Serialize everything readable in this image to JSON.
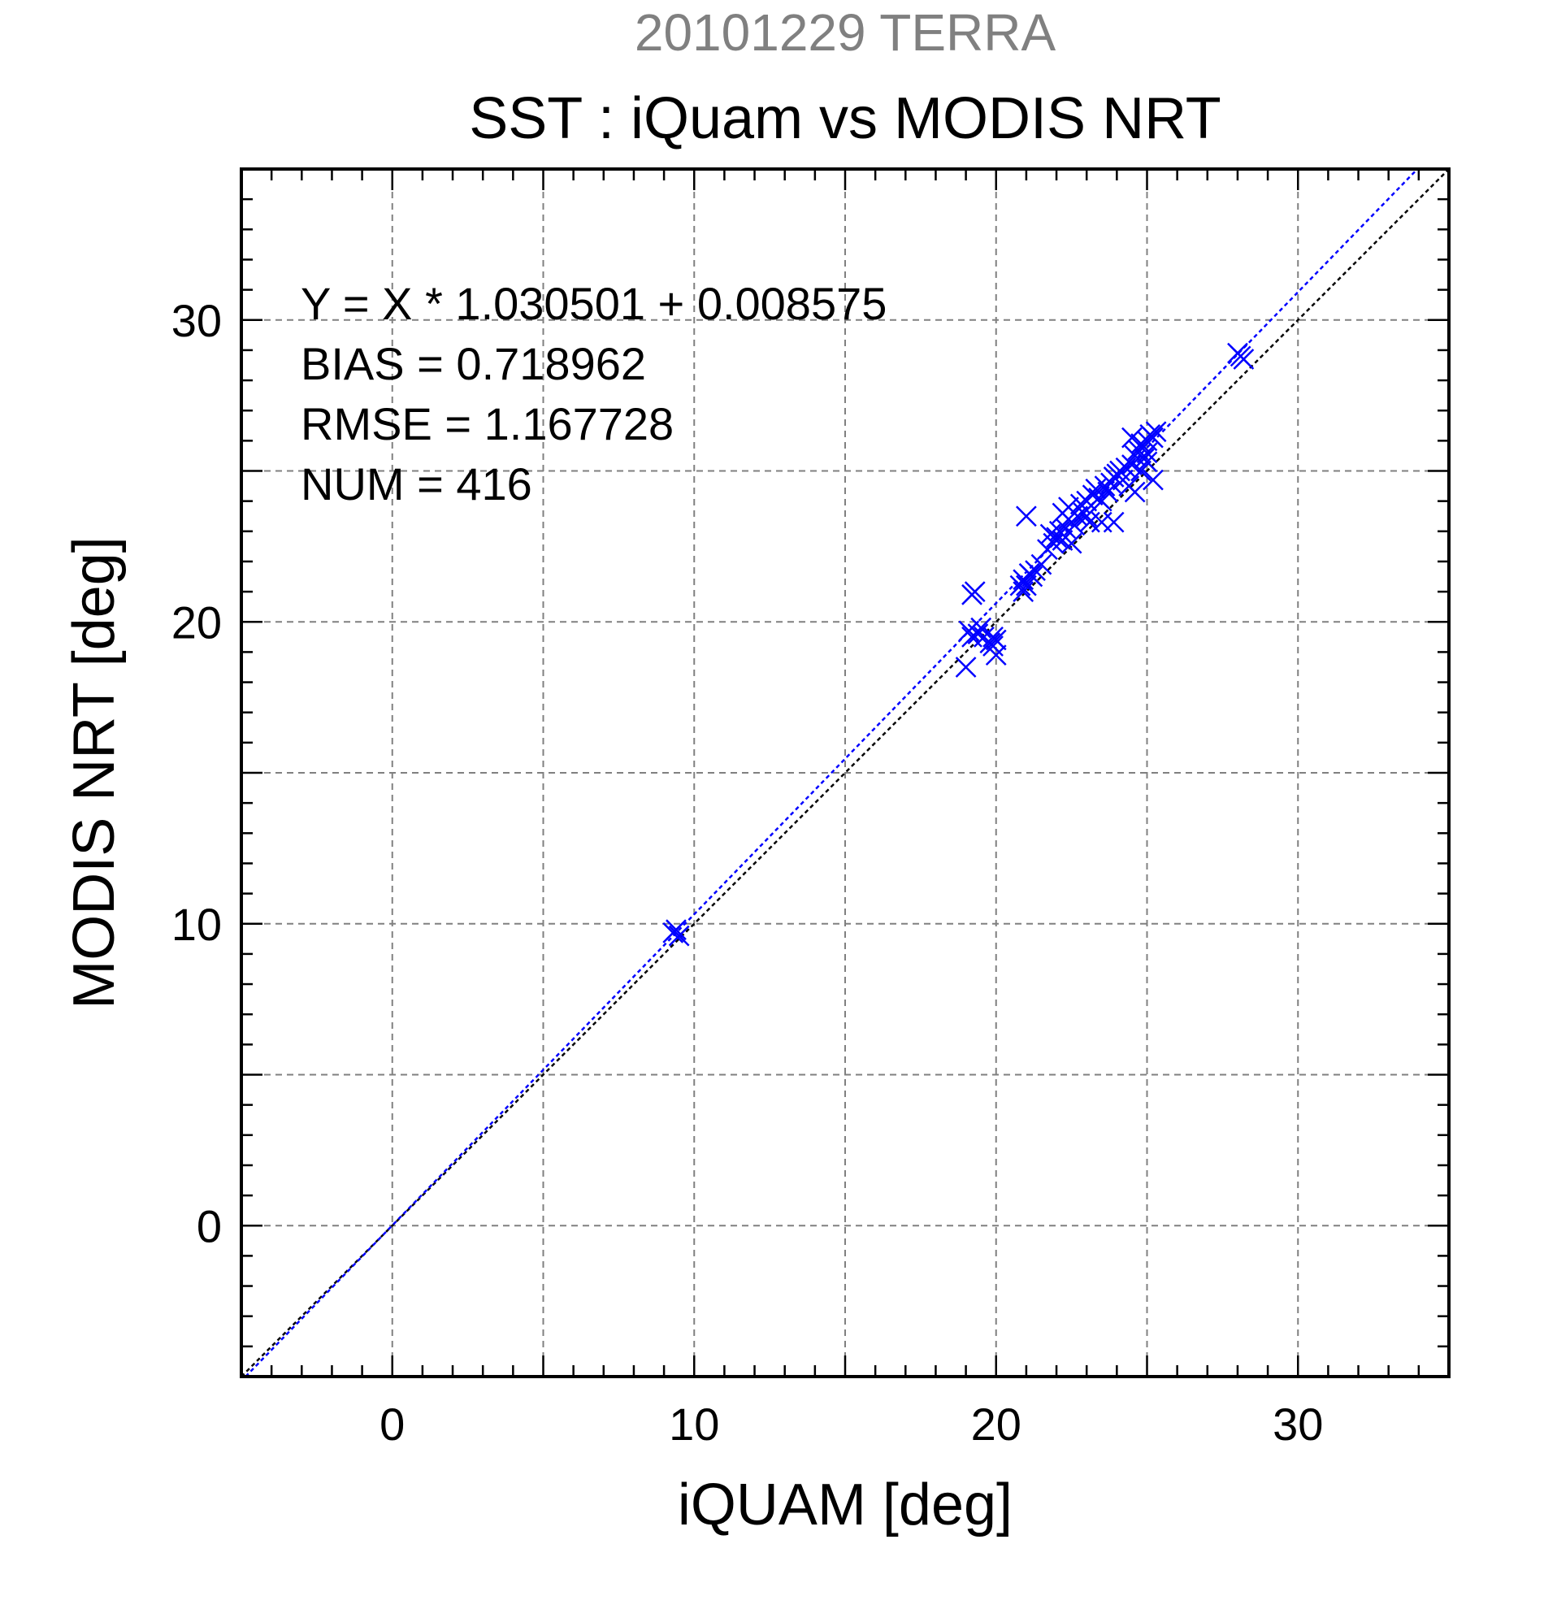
{
  "chart_data": {
    "type": "scatter",
    "title": "20101229 TERRA",
    "subtitle": "SST : iQuam vs MODIS NRT",
    "xlabel": "iQUAM [deg]",
    "ylabel": "MODIS NRT [deg]",
    "xlim": [
      -5,
      35
    ],
    "ylim": [
      -5,
      35
    ],
    "x_ticks": [
      0,
      10,
      20,
      30
    ],
    "y_ticks": [
      0,
      10,
      20,
      30
    ],
    "grid": true,
    "colors": {
      "title": "#808080",
      "text": "#000000",
      "points": "#0000ff",
      "fit_line": "#0000ff",
      "one_to_one_line": "#000000",
      "grid": "#808080"
    },
    "annotations": [
      "Y = X * 1.030501 + 0.008575",
      "BIAS = 0.718962",
      "RMSE = 1.167728",
      "NUM = 416"
    ],
    "fit": {
      "slope": 1.030501,
      "intercept": 0.008575
    },
    "series": [
      {
        "marker": "x",
        "x": [
          9.3,
          9.4,
          9.5,
          19.0,
          19.1,
          19.2,
          19.3,
          19.4,
          19.2,
          19.5,
          19.6,
          19.8,
          19.9,
          20.0,
          19.9,
          20.0,
          20.8,
          20.9,
          21.0,
          21.1,
          21.2,
          21.3,
          21.0,
          21.5,
          21.7,
          21.8,
          21.9,
          22.0,
          22.1,
          22.2,
          22.3,
          22.4,
          22.5,
          22.6,
          22.2,
          22.4,
          22.7,
          22.8,
          22.9,
          23.0,
          23.1,
          23.2,
          23.0,
          23.3,
          23.4,
          23.5,
          23.6,
          23.7,
          23.8,
          23.9,
          24.0,
          23.5,
          23.9,
          24.1,
          24.2,
          24.3,
          24.4,
          24.5,
          24.6,
          24.7,
          24.8,
          24.9,
          25.0,
          25.1,
          25.2,
          25.3,
          24.5,
          24.8,
          25.0,
          25.2,
          24.6,
          25.0,
          20.9,
          28.0,
          28.1,
          28.2
        ],
        "y": [
          9.7,
          9.8,
          9.6,
          18.5,
          19.7,
          20.9,
          21.0,
          19.6,
          19.5,
          19.8,
          19.5,
          19.3,
          19.2,
          18.9,
          19.5,
          19.4,
          21.2,
          21.4,
          21.2,
          21.6,
          21.5,
          21.7,
          23.5,
          21.9,
          22.4,
          22.9,
          22.6,
          22.8,
          23.0,
          22.7,
          23.1,
          23.4,
          22.6,
          23.2,
          23.6,
          23.8,
          23.5,
          23.9,
          23.6,
          24.0,
          23.3,
          24.2,
          23.5,
          24.4,
          24.1,
          23.3,
          24.5,
          24.3,
          24.6,
          24.8,
          24.9,
          24.0,
          23.3,
          25.0,
          24.7,
          25.1,
          24.5,
          25.2,
          25.5,
          25.7,
          25.9,
          25.4,
          26.0,
          26.2,
          26.1,
          26.3,
          26.1,
          25.0,
          25.3,
          24.7,
          24.3,
          25.6,
          21.0,
          28.9,
          28.8,
          28.7
        ]
      }
    ]
  }
}
